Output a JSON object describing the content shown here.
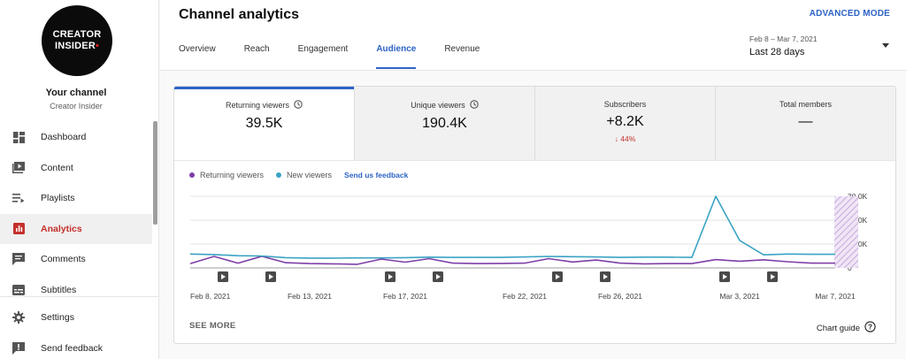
{
  "sidebar": {
    "avatar": {
      "line1": "CREATOR",
      "line2": "INSIDER",
      "dot": "•"
    },
    "channel_title": "Your channel",
    "channel_name": "Creator Insider",
    "items": [
      {
        "label": "Dashboard",
        "icon": "dashboard-icon"
      },
      {
        "label": "Content",
        "icon": "content-icon"
      },
      {
        "label": "Playlists",
        "icon": "playlists-icon"
      },
      {
        "label": "Analytics",
        "icon": "analytics-icon",
        "active": true
      },
      {
        "label": "Comments",
        "icon": "comments-icon"
      },
      {
        "label": "Subtitles",
        "icon": "subtitles-icon"
      }
    ],
    "bottom_items": [
      {
        "label": "Settings",
        "icon": "settings-icon"
      },
      {
        "label": "Send feedback",
        "icon": "feedback-icon"
      }
    ]
  },
  "header": {
    "title": "Channel analytics",
    "advanced_mode": "ADVANCED MODE",
    "tabs": [
      "Overview",
      "Reach",
      "Engagement",
      "Audience",
      "Revenue"
    ],
    "active_tab": "Audience",
    "date_range": {
      "sub": "Feb 8 – Mar 7, 2021",
      "main": "Last 28 days"
    }
  },
  "metrics": [
    {
      "label": "Returning viewers",
      "value": "39.5K",
      "has_info": true,
      "selected": true
    },
    {
      "label": "Unique viewers",
      "value": "190.4K",
      "has_info": true
    },
    {
      "label": "Subscribers",
      "value": "+8.2K",
      "delta": "↓ 44%"
    },
    {
      "label": "Total members",
      "value": "—"
    }
  ],
  "legend": {
    "returning": "Returning viewers",
    "new": "New viewers",
    "feedback_link": "Send us feedback"
  },
  "colors": {
    "returning": "#7e3fa8",
    "new": "#3aa3c4",
    "accent": "#2d63c5",
    "red": "#c4302b"
  },
  "chart_data": {
    "type": "line",
    "x": [
      "Feb 8, 2021",
      "Feb 9, 2021",
      "Feb 10, 2021",
      "Feb 11, 2021",
      "Feb 12, 2021",
      "Feb 13, 2021",
      "Feb 14, 2021",
      "Feb 15, 2021",
      "Feb 16, 2021",
      "Feb 17, 2021",
      "Feb 18, 2021",
      "Feb 19, 2021",
      "Feb 20, 2021",
      "Feb 21, 2021",
      "Feb 22, 2021",
      "Feb 23, 2021",
      "Feb 24, 2021",
      "Feb 25, 2021",
      "Feb 26, 2021",
      "Feb 27, 2021",
      "Feb 28, 2021",
      "Mar 1, 2021",
      "Mar 2, 2021",
      "Mar 3, 2021",
      "Mar 4, 2021",
      "Mar 5, 2021",
      "Mar 6, 2021",
      "Mar 7, 2021"
    ],
    "x_tick_labels": [
      "Feb 8, 2021",
      "Feb 13, 2021",
      "Feb 17, 2021",
      "Feb 22, 2021",
      "Feb 26, 2021",
      "Mar 3, 2021",
      "Mar 7, 2021"
    ],
    "x_tick_indices": [
      0,
      5,
      9,
      14,
      18,
      23,
      27
    ],
    "y_tick_labels": [
      "30.0K",
      "20.0K",
      "10.0K",
      "0"
    ],
    "ylim": [
      0,
      30000
    ],
    "series": [
      {
        "name": "Returning viewers",
        "values": [
          1800,
          4800,
          2000,
          4900,
          2200,
          1800,
          1700,
          1500,
          3700,
          2400,
          3900,
          2000,
          1800,
          1900,
          2000,
          3900,
          2500,
          3300,
          2000,
          1700,
          1800,
          1800,
          3500,
          2800,
          3400,
          2600,
          2000,
          2000
        ]
      },
      {
        "name": "New viewers",
        "values": [
          5800,
          5600,
          5100,
          5000,
          4300,
          4100,
          4100,
          4200,
          4200,
          4300,
          4500,
          4400,
          4400,
          4400,
          4600,
          4800,
          4700,
          4600,
          4400,
          4500,
          4500,
          4400,
          30000,
          11500,
          5500,
          5800,
          5700,
          5700
        ]
      }
    ],
    "video_markers": [
      1,
      3,
      8,
      10,
      15,
      17,
      22,
      24
    ],
    "highlight_last_day": true,
    "grid": true
  },
  "footer": {
    "see_more": "SEE MORE",
    "chart_guide": "Chart guide"
  }
}
